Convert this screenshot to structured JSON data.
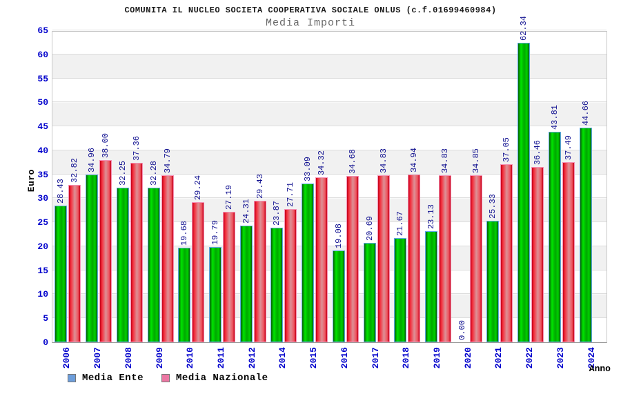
{
  "header": {
    "title": "COMUNITA IL NUCLEO SOCIETA COOPERATIVA SOCIALE ONLUS (c.f.01699460984)",
    "subtitle": "Media Importi"
  },
  "chart_data": {
    "type": "bar",
    "title": "Media Importi",
    "xlabel": "Anno",
    "ylabel": "Euro",
    "ylim": [
      0,
      65
    ],
    "ytick_step": 5,
    "grid": true,
    "legend_position": "bottom",
    "categories": [
      "2006",
      "2007",
      "2008",
      "2009",
      "2010",
      "2011",
      "2012",
      "2014",
      "2015",
      "2016",
      "2017",
      "2018",
      "2019",
      "2020",
      "2021",
      "2022",
      "2023",
      "2024"
    ],
    "series": [
      {
        "name": "Media Ente",
        "legend_color": "#6d9edb",
        "bar_style": "ente",
        "values": [
          28.43,
          34.96,
          32.25,
          32.28,
          19.68,
          19.79,
          24.31,
          23.87,
          33.09,
          19.08,
          20.69,
          21.67,
          23.13,
          0.0,
          25.33,
          62.34,
          43.81,
          44.66
        ]
      },
      {
        "name": "Media Nazionale",
        "legend_color": "#ec77a3",
        "bar_style": "nazionale",
        "values": [
          32.82,
          38.0,
          37.36,
          34.79,
          29.24,
          27.19,
          29.43,
          27.71,
          34.32,
          34.68,
          34.83,
          34.94,
          34.83,
          34.85,
          37.05,
          36.46,
          37.49,
          null
        ]
      }
    ]
  },
  "colors": {
    "axis_tick_text": "#0000cc",
    "value_label_text": "#101090",
    "band": "#f1f1f1",
    "gridline": "#dcdcdc",
    "bar_ente_main": "#00c000",
    "bar_ente_border": "#5fa8e8",
    "bar_nazionale_main": "#e03040",
    "bar_nazionale_border": "#f490b4"
  }
}
